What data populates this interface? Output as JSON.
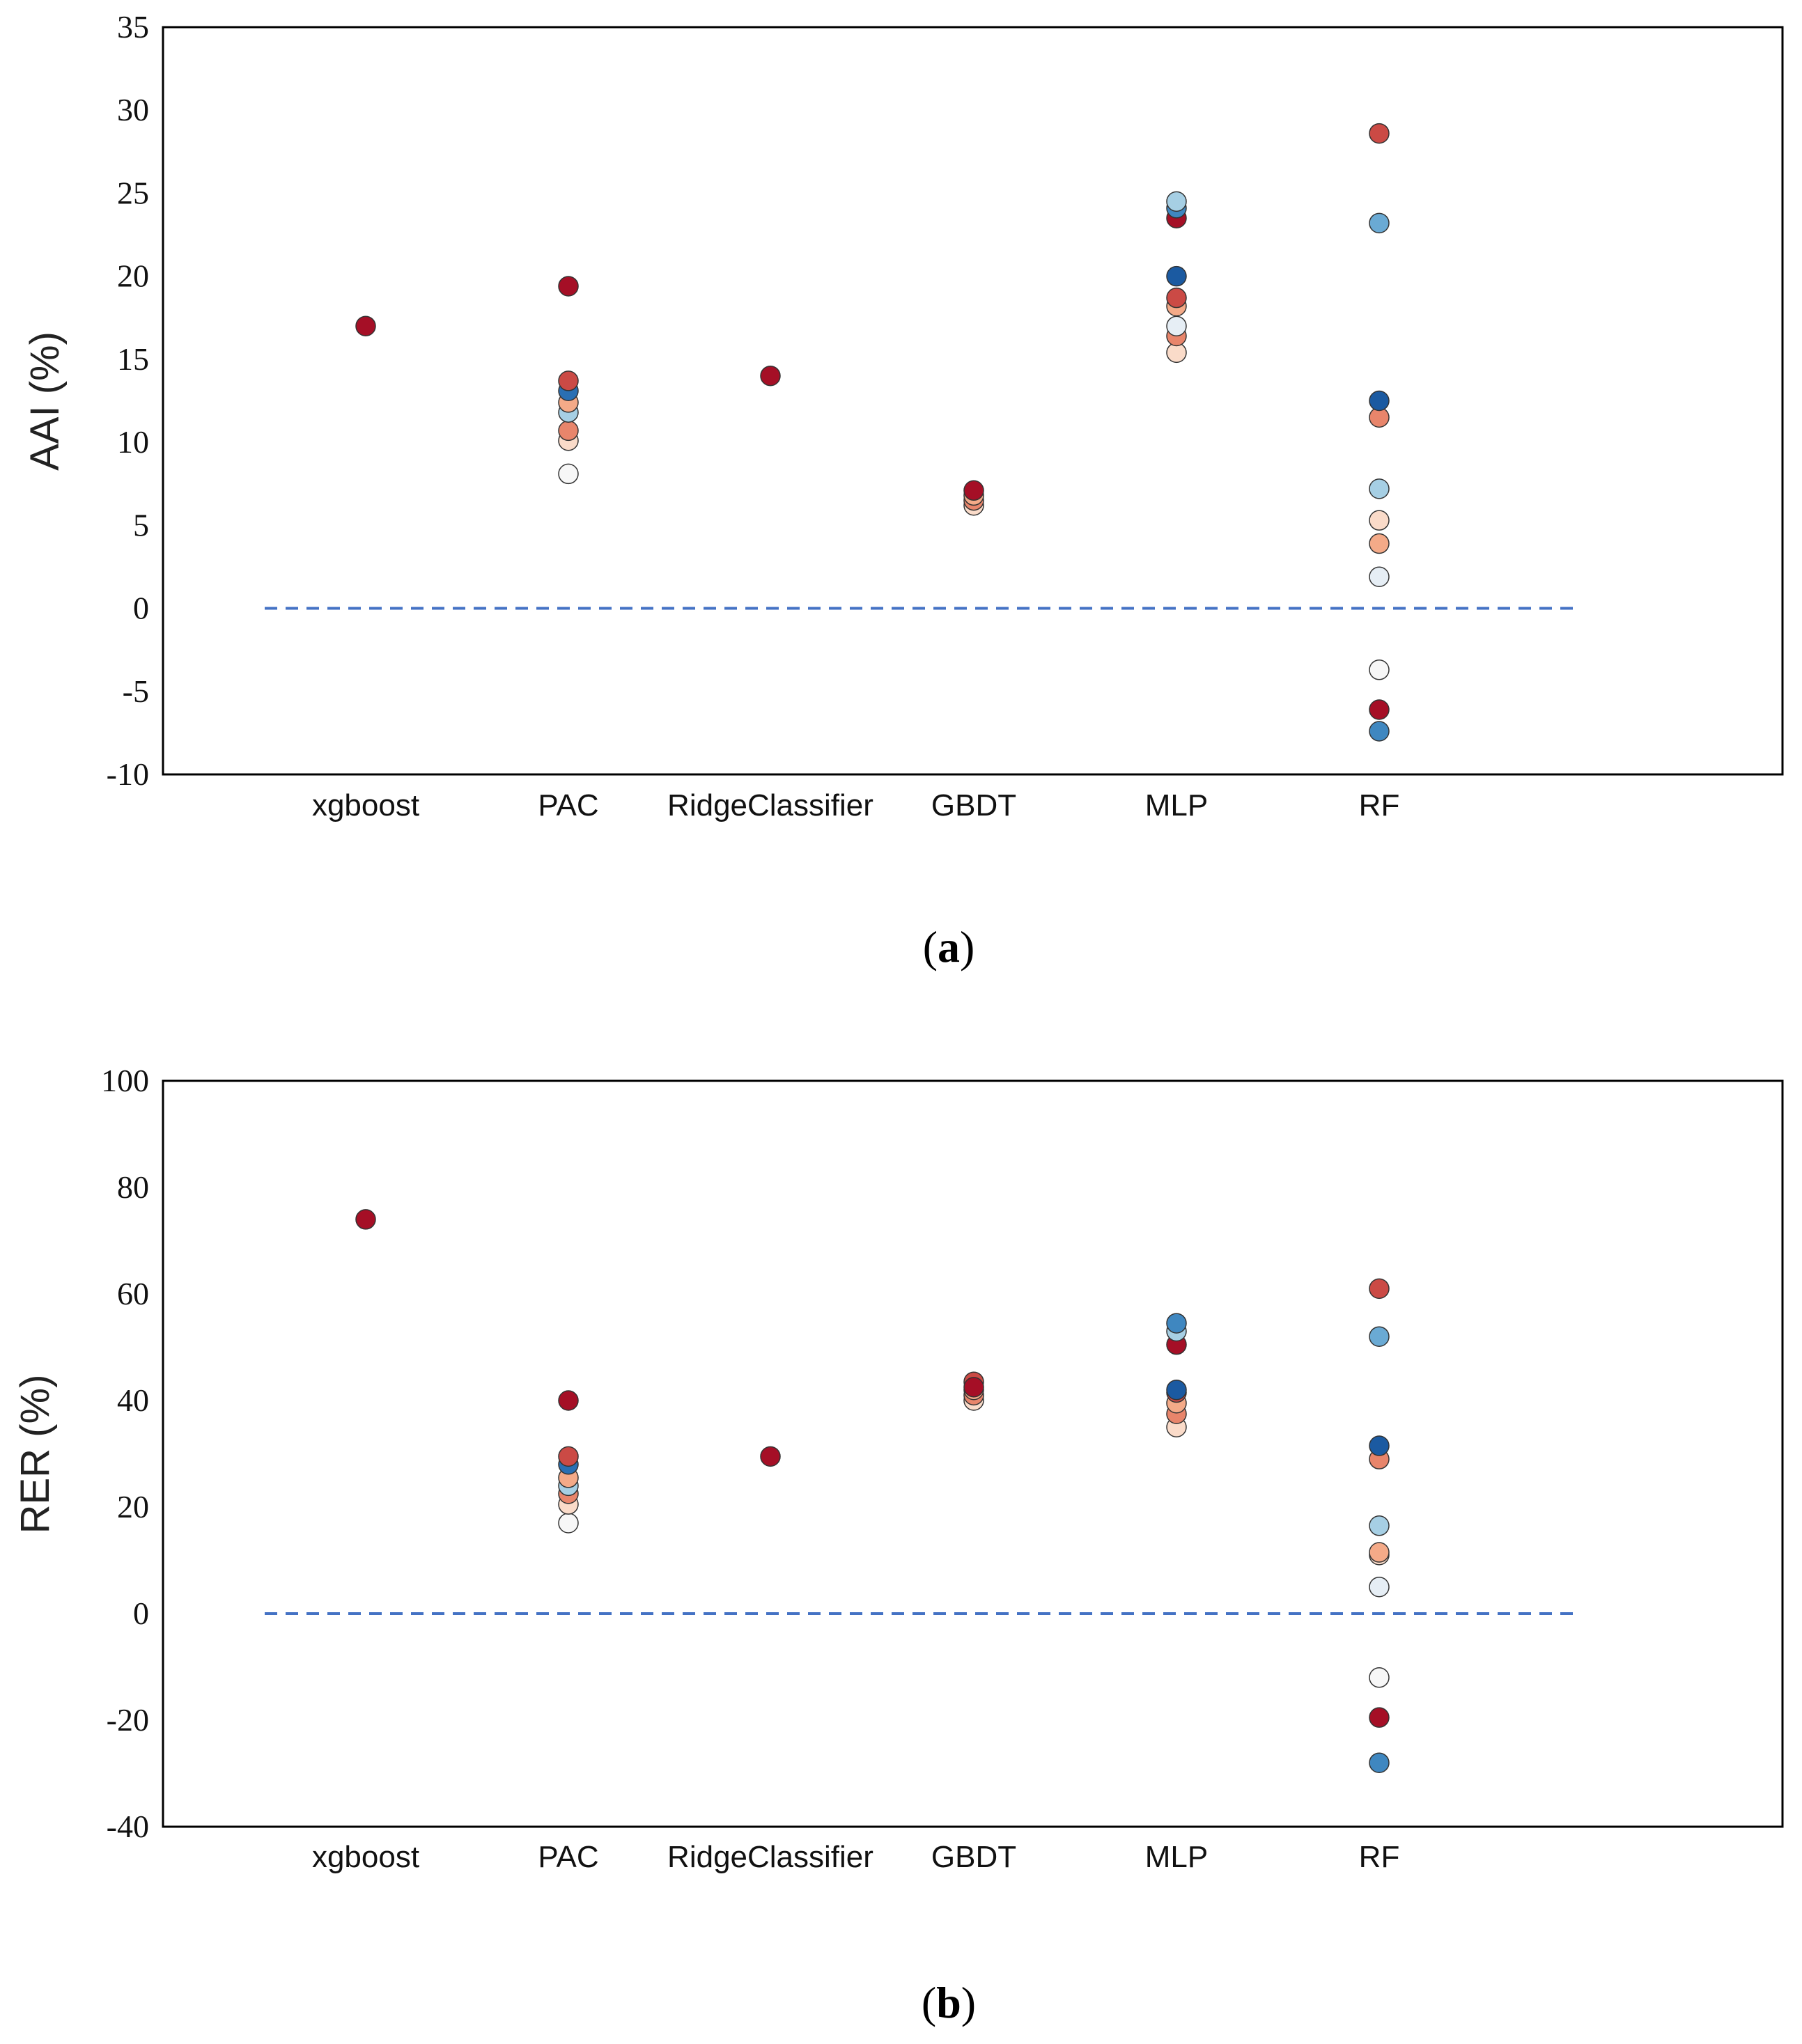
{
  "chart_data": [
    {
      "type": "scatter",
      "caption": {
        "open": "(",
        "letter": "a",
        "close": ")"
      },
      "ylabel": "AAI (%)",
      "ylim": [
        -10,
        35
      ],
      "yticks": [
        -10,
        -5,
        0,
        5,
        10,
        15,
        20,
        25,
        30,
        35
      ],
      "ytick_labels": [
        "-10",
        "-5",
        "0",
        "5",
        "10",
        "15",
        "20",
        "25",
        "30",
        "35"
      ],
      "categories": [
        "xgboost",
        "PAC",
        "RidgeClassifier",
        "GBDT",
        "MLP",
        "RF"
      ],
      "reference_line": 0,
      "points": [
        {
          "category": "xgboost",
          "value": 17.0,
          "color": "#a50f26"
        },
        {
          "category": "PAC",
          "value": 8.1,
          "color": "#f7f7f7"
        },
        {
          "category": "PAC",
          "value": 10.1,
          "color": "#fadbc9"
        },
        {
          "category": "PAC",
          "value": 10.7,
          "color": "#e8856b"
        },
        {
          "category": "PAC",
          "value": 11.8,
          "color": "#a6cfe4"
        },
        {
          "category": "PAC",
          "value": 12.4,
          "color": "#f4aa88"
        },
        {
          "category": "PAC",
          "value": 13.1,
          "color": "#2a6fb3"
        },
        {
          "category": "PAC",
          "value": 13.7,
          "color": "#cb4a45"
        },
        {
          "category": "PAC",
          "value": 19.4,
          "color": "#a50f26"
        },
        {
          "category": "RidgeClassifier",
          "value": 14.0,
          "color": "#a50f26"
        },
        {
          "category": "GBDT",
          "value": 6.2,
          "color": "#fadbc9"
        },
        {
          "category": "GBDT",
          "value": 6.5,
          "color": "#e8856b"
        },
        {
          "category": "GBDT",
          "value": 6.8,
          "color": "#f4aa88"
        },
        {
          "category": "GBDT",
          "value": 7.1,
          "color": "#a50f26"
        },
        {
          "category": "MLP",
          "value": 15.4,
          "color": "#fadbc9"
        },
        {
          "category": "MLP",
          "value": 16.4,
          "color": "#e8856b"
        },
        {
          "category": "MLP",
          "value": 17.0,
          "color": "#e6eef5"
        },
        {
          "category": "MLP",
          "value": 18.2,
          "color": "#f4aa88"
        },
        {
          "category": "MLP",
          "value": 18.7,
          "color": "#cb4a45"
        },
        {
          "category": "MLP",
          "value": 20.0,
          "color": "#1b5aa1"
        },
        {
          "category": "MLP",
          "value": 23.5,
          "color": "#a50f26"
        },
        {
          "category": "MLP",
          "value": 24.1,
          "color": "#3f87c0"
        },
        {
          "category": "MLP",
          "value": 24.5,
          "color": "#a6cfe4"
        },
        {
          "category": "RF",
          "value": -7.4,
          "color": "#3f87c0"
        },
        {
          "category": "RF",
          "value": -6.1,
          "color": "#a50f26"
        },
        {
          "category": "RF",
          "value": -3.7,
          "color": "#f7f7f7"
        },
        {
          "category": "RF",
          "value": 1.9,
          "color": "#e6eef5"
        },
        {
          "category": "RF",
          "value": 3.9,
          "color": "#f4aa88"
        },
        {
          "category": "RF",
          "value": 5.3,
          "color": "#fadbc9"
        },
        {
          "category": "RF",
          "value": 7.2,
          "color": "#a6cfe4"
        },
        {
          "category": "RF",
          "value": 11.5,
          "color": "#e8856b"
        },
        {
          "category": "RF",
          "value": 12.5,
          "color": "#1b5aa1"
        },
        {
          "category": "RF",
          "value": 23.2,
          "color": "#6aaad4"
        },
        {
          "category": "RF",
          "value": 28.6,
          "color": "#cb4a45"
        }
      ]
    },
    {
      "type": "scatter",
      "caption": {
        "open": "(",
        "letter": "b",
        "close": ")"
      },
      "ylabel": "RER (%)",
      "ylim": [
        -40,
        100
      ],
      "yticks": [
        -40,
        -20,
        0,
        20,
        40,
        60,
        80,
        100
      ],
      "ytick_labels": [
        "-40",
        "-20",
        "0",
        "20",
        "40",
        "60",
        "80",
        "100"
      ],
      "categories": [
        "xgboost",
        "PAC",
        "RidgeClassifier",
        "GBDT",
        "MLP",
        "RF"
      ],
      "reference_line": 0,
      "points": [
        {
          "category": "xgboost",
          "value": 74.0,
          "color": "#a50f26"
        },
        {
          "category": "PAC",
          "value": 17.0,
          "color": "#f7f7f7"
        },
        {
          "category": "PAC",
          "value": 20.5,
          "color": "#fadbc9"
        },
        {
          "category": "PAC",
          "value": 22.5,
          "color": "#e8856b"
        },
        {
          "category": "PAC",
          "value": 24.0,
          "color": "#a6cfe4"
        },
        {
          "category": "PAC",
          "value": 25.5,
          "color": "#f4aa88"
        },
        {
          "category": "PAC",
          "value": 28.0,
          "color": "#2a6fb3"
        },
        {
          "category": "PAC",
          "value": 29.5,
          "color": "#cb4a45"
        },
        {
          "category": "PAC",
          "value": 40.0,
          "color": "#a50f26"
        },
        {
          "category": "RidgeClassifier",
          "value": 29.5,
          "color": "#a50f26"
        },
        {
          "category": "GBDT",
          "value": 40.0,
          "color": "#fadbc9"
        },
        {
          "category": "GBDT",
          "value": 41.0,
          "color": "#e8856b"
        },
        {
          "category": "GBDT",
          "value": 42.0,
          "color": "#f4aa88"
        },
        {
          "category": "GBDT",
          "value": 43.5,
          "color": "#cb4a45"
        },
        {
          "category": "GBDT",
          "value": 42.5,
          "color": "#a50f26"
        },
        {
          "category": "MLP",
          "value": 35.0,
          "color": "#fadbc9"
        },
        {
          "category": "MLP",
          "value": 37.5,
          "color": "#e8856b"
        },
        {
          "category": "MLP",
          "value": 39.5,
          "color": "#f4aa88"
        },
        {
          "category": "MLP",
          "value": 41.5,
          "color": "#cb4a45"
        },
        {
          "category": "MLP",
          "value": 42.0,
          "color": "#1b5aa1"
        },
        {
          "category": "MLP",
          "value": 50.5,
          "color": "#a50f26"
        },
        {
          "category": "MLP",
          "value": 53.0,
          "color": "#a6cfe4"
        },
        {
          "category": "MLP",
          "value": 54.5,
          "color": "#3f87c0"
        },
        {
          "category": "RF",
          "value": -28.0,
          "color": "#3f87c0"
        },
        {
          "category": "RF",
          "value": -19.5,
          "color": "#a50f26"
        },
        {
          "category": "RF",
          "value": -12.0,
          "color": "#f7f7f7"
        },
        {
          "category": "RF",
          "value": 5.0,
          "color": "#e6eef5"
        },
        {
          "category": "RF",
          "value": 11.0,
          "color": "#fadbc9"
        },
        {
          "category": "RF",
          "value": 11.5,
          "color": "#f4aa88"
        },
        {
          "category": "RF",
          "value": 16.5,
          "color": "#a6cfe4"
        },
        {
          "category": "RF",
          "value": 29.0,
          "color": "#e8856b"
        },
        {
          "category": "RF",
          "value": 31.5,
          "color": "#1b5aa1"
        },
        {
          "category": "RF",
          "value": 52.0,
          "color": "#6aaad4"
        },
        {
          "category": "RF",
          "value": 61.0,
          "color": "#cb4a45"
        }
      ]
    }
  ]
}
